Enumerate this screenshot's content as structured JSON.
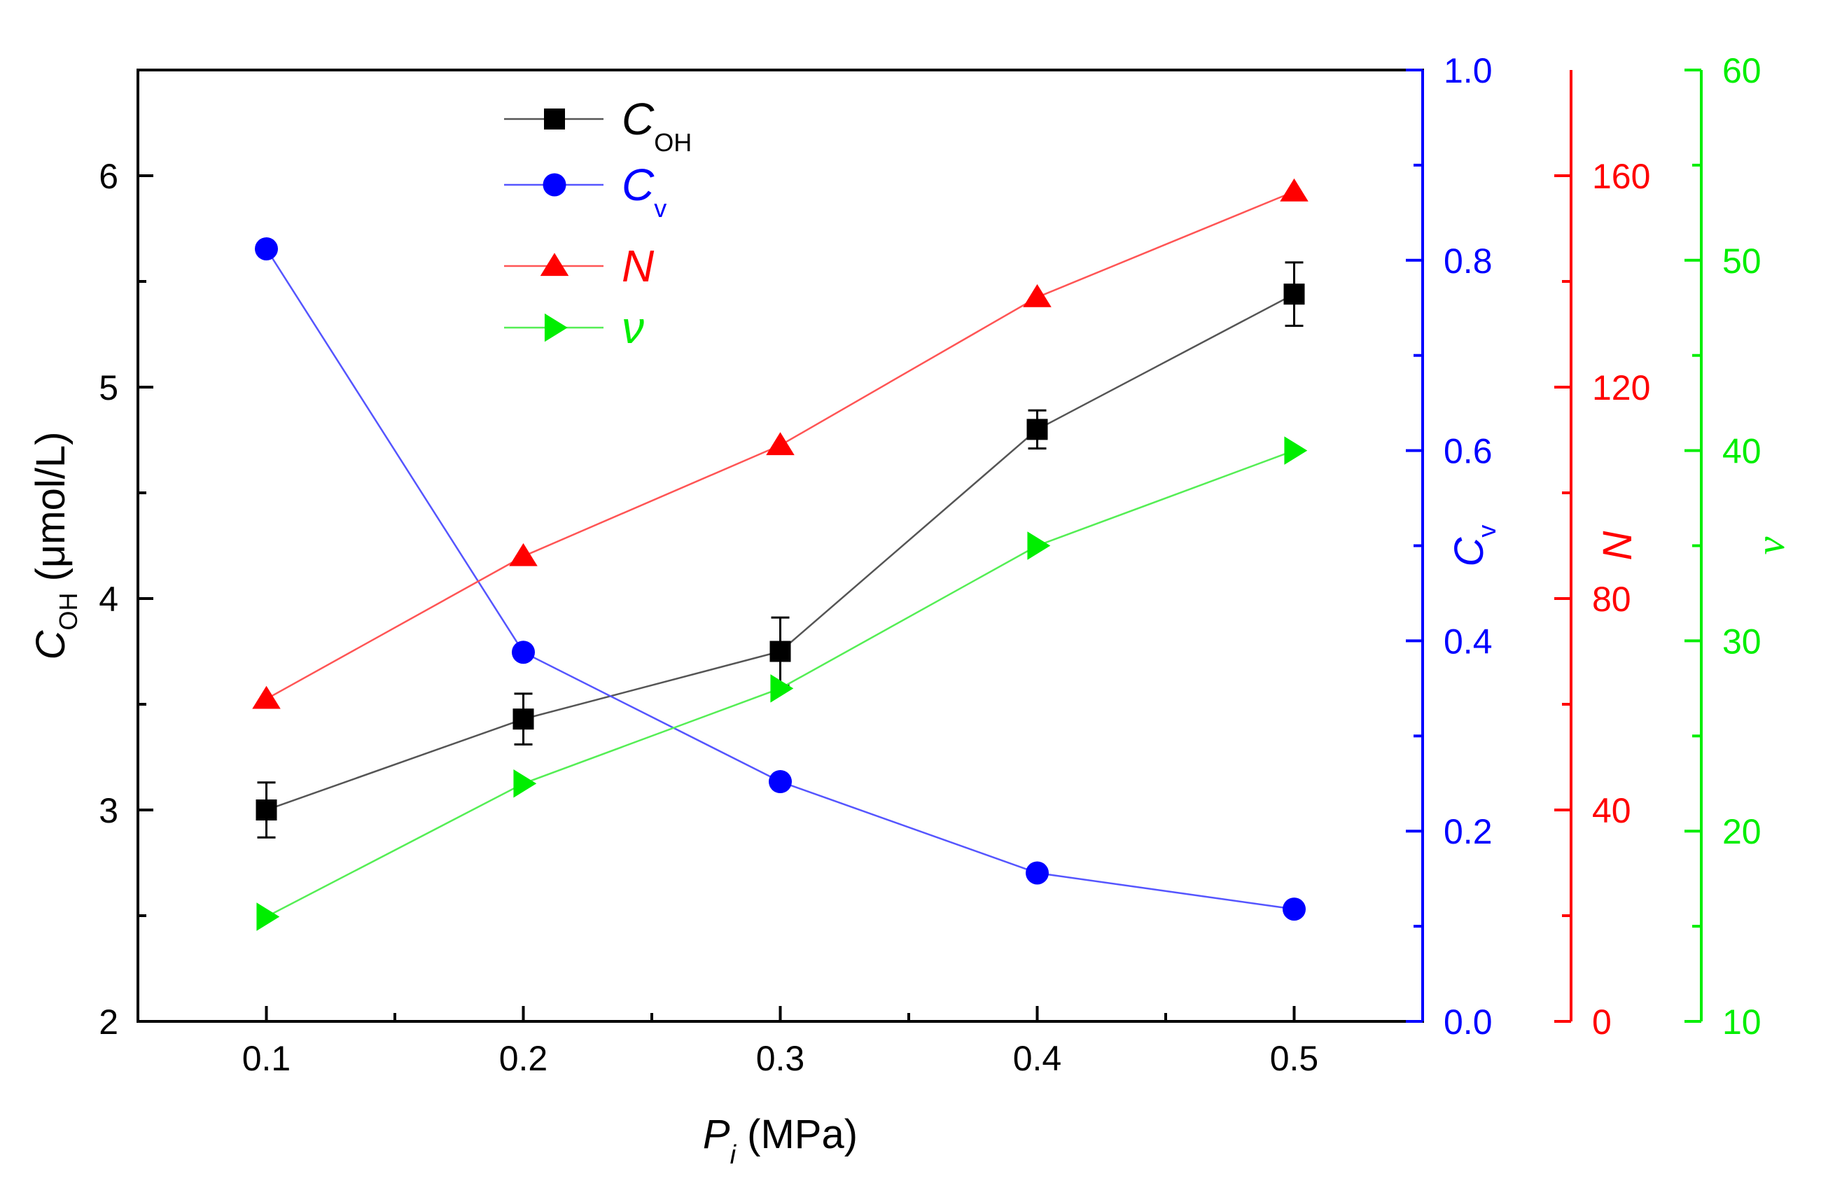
{
  "chart_data": {
    "type": "line",
    "x": [
      0.1,
      0.2,
      0.3,
      0.4,
      0.5
    ],
    "xlim": [
      0.05,
      0.55
    ],
    "x_ticks": [
      "0.1",
      "0.2",
      "0.3",
      "0.4",
      "0.5"
    ],
    "x_tick_values": [
      0.1,
      0.2,
      0.3,
      0.4,
      0.5
    ],
    "xlabel": {
      "symbol": "P",
      "sub": "i",
      "unit": "(MPa)"
    },
    "grid": false,
    "legend_position": "top-left",
    "axes": [
      {
        "id": "left",
        "color": "#000000",
        "ylim": [
          2,
          6.5
        ],
        "ticks": [
          "2",
          "3",
          "4",
          "5",
          "6"
        ],
        "tick_values": [
          2,
          3,
          4,
          5,
          6
        ],
        "label": {
          "symbol": "C",
          "sub": "OH",
          "unit": "(μmol/L)"
        }
      },
      {
        "id": "cv",
        "color": "#0000ff",
        "ylim": [
          0,
          1.0
        ],
        "ticks": [
          "0.0",
          "0.2",
          "0.4",
          "0.6",
          "0.8",
          "1.0"
        ],
        "tick_values": [
          0,
          0.2,
          0.4,
          0.6,
          0.8,
          1.0
        ],
        "label": {
          "symbol": "C",
          "sub": "v",
          "unit": ""
        }
      },
      {
        "id": "n",
        "color": "#ff0000",
        "ylim": [
          0,
          180
        ],
        "ticks": [
          "0",
          "40",
          "80",
          "120",
          "160"
        ],
        "tick_values": [
          0,
          40,
          80,
          120,
          160
        ],
        "label": {
          "symbol": "N",
          "sub": "",
          "unit": ""
        }
      },
      {
        "id": "nu",
        "color": "#00ee00",
        "ylim": [
          10,
          60
        ],
        "ticks": [
          "10",
          "20",
          "30",
          "40",
          "50",
          "60"
        ],
        "tick_values": [
          10,
          20,
          30,
          40,
          50,
          60
        ],
        "label": {
          "symbol": "ν",
          "sub": "",
          "unit": ""
        }
      }
    ],
    "series": [
      {
        "name": "C_OH",
        "symbol": "C",
        "sub": "OH",
        "axis": "left",
        "color": "#000000",
        "line_color": "#555555",
        "marker": "square",
        "values": [
          3.0,
          3.43,
          3.75,
          4.8,
          5.44
        ],
        "errors": [
          0.13,
          0.12,
          0.16,
          0.09,
          0.15
        ]
      },
      {
        "name": "C_v",
        "symbol": "C",
        "sub": "v",
        "axis": "cv",
        "color": "#0000ff",
        "line_color": "#5555ff",
        "marker": "circle",
        "values": [
          0.812,
          0.388,
          0.252,
          0.156,
          0.118
        ]
      },
      {
        "name": "N",
        "symbol": "N",
        "sub": "",
        "axis": "n",
        "color": "#ff0000",
        "line_color": "#ff5555",
        "marker": "triangle-up",
        "values": [
          61,
          88,
          109,
          137,
          157
        ]
      },
      {
        "name": "ν",
        "symbol": "ν",
        "sub": "",
        "axis": "nu",
        "color": "#00ee00",
        "line_color": "#55ee55",
        "marker": "triangle-right",
        "values": [
          15.5,
          22.5,
          27.5,
          35.0,
          40.0
        ]
      }
    ]
  }
}
